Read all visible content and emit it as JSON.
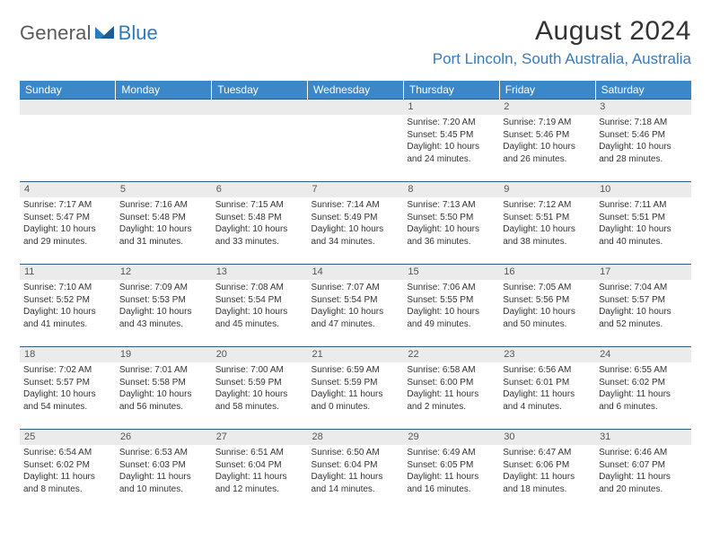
{
  "logo": {
    "general": "General",
    "blue": "Blue"
  },
  "header": {
    "month_title": "August 2024",
    "location": "Port Lincoln, South Australia, Australia"
  },
  "columns": [
    "Sunday",
    "Monday",
    "Tuesday",
    "Wednesday",
    "Thursday",
    "Friday",
    "Saturday"
  ],
  "style": {
    "header_bg": "#3b87c8",
    "header_fg": "#ffffff",
    "rule_color": "#2d5d8a",
    "date_strip_bg": "#ebebeb",
    "date_strip_fg": "#555555",
    "body_font_size": 10,
    "header_font_size": 12,
    "title_font_size": 30,
    "location_color": "#3b7ab8",
    "page_bg": "#ffffff"
  },
  "weeks": [
    [
      {
        "date": "",
        "sunrise": "",
        "sunset": "",
        "daylight": ""
      },
      {
        "date": "",
        "sunrise": "",
        "sunset": "",
        "daylight": ""
      },
      {
        "date": "",
        "sunrise": "",
        "sunset": "",
        "daylight": ""
      },
      {
        "date": "",
        "sunrise": "",
        "sunset": "",
        "daylight": ""
      },
      {
        "date": "1",
        "sunrise": "Sunrise: 7:20 AM",
        "sunset": "Sunset: 5:45 PM",
        "daylight": "Daylight: 10 hours and 24 minutes."
      },
      {
        "date": "2",
        "sunrise": "Sunrise: 7:19 AM",
        "sunset": "Sunset: 5:46 PM",
        "daylight": "Daylight: 10 hours and 26 minutes."
      },
      {
        "date": "3",
        "sunrise": "Sunrise: 7:18 AM",
        "sunset": "Sunset: 5:46 PM",
        "daylight": "Daylight: 10 hours and 28 minutes."
      }
    ],
    [
      {
        "date": "4",
        "sunrise": "Sunrise: 7:17 AM",
        "sunset": "Sunset: 5:47 PM",
        "daylight": "Daylight: 10 hours and 29 minutes."
      },
      {
        "date": "5",
        "sunrise": "Sunrise: 7:16 AM",
        "sunset": "Sunset: 5:48 PM",
        "daylight": "Daylight: 10 hours and 31 minutes."
      },
      {
        "date": "6",
        "sunrise": "Sunrise: 7:15 AM",
        "sunset": "Sunset: 5:48 PM",
        "daylight": "Daylight: 10 hours and 33 minutes."
      },
      {
        "date": "7",
        "sunrise": "Sunrise: 7:14 AM",
        "sunset": "Sunset: 5:49 PM",
        "daylight": "Daylight: 10 hours and 34 minutes."
      },
      {
        "date": "8",
        "sunrise": "Sunrise: 7:13 AM",
        "sunset": "Sunset: 5:50 PM",
        "daylight": "Daylight: 10 hours and 36 minutes."
      },
      {
        "date": "9",
        "sunrise": "Sunrise: 7:12 AM",
        "sunset": "Sunset: 5:51 PM",
        "daylight": "Daylight: 10 hours and 38 minutes."
      },
      {
        "date": "10",
        "sunrise": "Sunrise: 7:11 AM",
        "sunset": "Sunset: 5:51 PM",
        "daylight": "Daylight: 10 hours and 40 minutes."
      }
    ],
    [
      {
        "date": "11",
        "sunrise": "Sunrise: 7:10 AM",
        "sunset": "Sunset: 5:52 PM",
        "daylight": "Daylight: 10 hours and 41 minutes."
      },
      {
        "date": "12",
        "sunrise": "Sunrise: 7:09 AM",
        "sunset": "Sunset: 5:53 PM",
        "daylight": "Daylight: 10 hours and 43 minutes."
      },
      {
        "date": "13",
        "sunrise": "Sunrise: 7:08 AM",
        "sunset": "Sunset: 5:54 PM",
        "daylight": "Daylight: 10 hours and 45 minutes."
      },
      {
        "date": "14",
        "sunrise": "Sunrise: 7:07 AM",
        "sunset": "Sunset: 5:54 PM",
        "daylight": "Daylight: 10 hours and 47 minutes."
      },
      {
        "date": "15",
        "sunrise": "Sunrise: 7:06 AM",
        "sunset": "Sunset: 5:55 PM",
        "daylight": "Daylight: 10 hours and 49 minutes."
      },
      {
        "date": "16",
        "sunrise": "Sunrise: 7:05 AM",
        "sunset": "Sunset: 5:56 PM",
        "daylight": "Daylight: 10 hours and 50 minutes."
      },
      {
        "date": "17",
        "sunrise": "Sunrise: 7:04 AM",
        "sunset": "Sunset: 5:57 PM",
        "daylight": "Daylight: 10 hours and 52 minutes."
      }
    ],
    [
      {
        "date": "18",
        "sunrise": "Sunrise: 7:02 AM",
        "sunset": "Sunset: 5:57 PM",
        "daylight": "Daylight: 10 hours and 54 minutes."
      },
      {
        "date": "19",
        "sunrise": "Sunrise: 7:01 AM",
        "sunset": "Sunset: 5:58 PM",
        "daylight": "Daylight: 10 hours and 56 minutes."
      },
      {
        "date": "20",
        "sunrise": "Sunrise: 7:00 AM",
        "sunset": "Sunset: 5:59 PM",
        "daylight": "Daylight: 10 hours and 58 minutes."
      },
      {
        "date": "21",
        "sunrise": "Sunrise: 6:59 AM",
        "sunset": "Sunset: 5:59 PM",
        "daylight": "Daylight: 11 hours and 0 minutes."
      },
      {
        "date": "22",
        "sunrise": "Sunrise: 6:58 AM",
        "sunset": "Sunset: 6:00 PM",
        "daylight": "Daylight: 11 hours and 2 minutes."
      },
      {
        "date": "23",
        "sunrise": "Sunrise: 6:56 AM",
        "sunset": "Sunset: 6:01 PM",
        "daylight": "Daylight: 11 hours and 4 minutes."
      },
      {
        "date": "24",
        "sunrise": "Sunrise: 6:55 AM",
        "sunset": "Sunset: 6:02 PM",
        "daylight": "Daylight: 11 hours and 6 minutes."
      }
    ],
    [
      {
        "date": "25",
        "sunrise": "Sunrise: 6:54 AM",
        "sunset": "Sunset: 6:02 PM",
        "daylight": "Daylight: 11 hours and 8 minutes."
      },
      {
        "date": "26",
        "sunrise": "Sunrise: 6:53 AM",
        "sunset": "Sunset: 6:03 PM",
        "daylight": "Daylight: 11 hours and 10 minutes."
      },
      {
        "date": "27",
        "sunrise": "Sunrise: 6:51 AM",
        "sunset": "Sunset: 6:04 PM",
        "daylight": "Daylight: 11 hours and 12 minutes."
      },
      {
        "date": "28",
        "sunrise": "Sunrise: 6:50 AM",
        "sunset": "Sunset: 6:04 PM",
        "daylight": "Daylight: 11 hours and 14 minutes."
      },
      {
        "date": "29",
        "sunrise": "Sunrise: 6:49 AM",
        "sunset": "Sunset: 6:05 PM",
        "daylight": "Daylight: 11 hours and 16 minutes."
      },
      {
        "date": "30",
        "sunrise": "Sunrise: 6:47 AM",
        "sunset": "Sunset: 6:06 PM",
        "daylight": "Daylight: 11 hours and 18 minutes."
      },
      {
        "date": "31",
        "sunrise": "Sunrise: 6:46 AM",
        "sunset": "Sunset: 6:07 PM",
        "daylight": "Daylight: 11 hours and 20 minutes."
      }
    ]
  ]
}
